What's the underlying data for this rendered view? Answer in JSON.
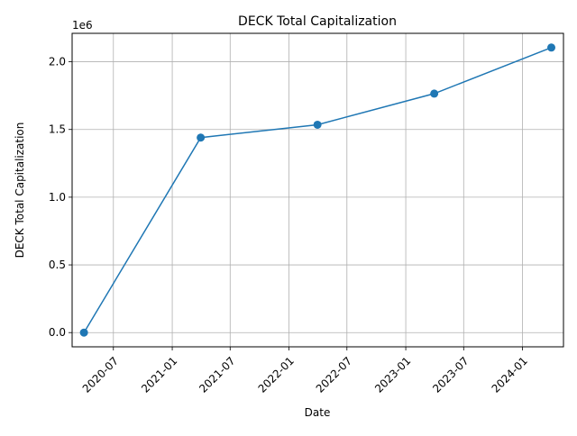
{
  "chart_data": {
    "type": "line",
    "title": "DECK Total Capitalization",
    "xlabel": "Date",
    "ylabel": "DECK Total Capitalization",
    "y_offset_label": "1e6",
    "x": [
      "2020-03-31",
      "2021-03-31",
      "2022-03-31",
      "2023-03-31",
      "2024-03-31"
    ],
    "series": [
      {
        "values": [
          0,
          1440000,
          1535000,
          1765000,
          2105000
        ]
      }
    ],
    "xlim": [
      "2020-02-23",
      "2024-05-08"
    ],
    "ylim": [
      -105000,
      2210000
    ],
    "x_ticks": [
      {
        "date": "2020-07-01",
        "label": "2020-07"
      },
      {
        "date": "2021-01-01",
        "label": "2021-01"
      },
      {
        "date": "2021-07-01",
        "label": "2021-07"
      },
      {
        "date": "2022-01-01",
        "label": "2022-01"
      },
      {
        "date": "2022-07-01",
        "label": "2022-07"
      },
      {
        "date": "2023-01-01",
        "label": "2023-01"
      },
      {
        "date": "2023-07-01",
        "label": "2023-07"
      },
      {
        "date": "2024-01-01",
        "label": "2024-01"
      }
    ],
    "y_ticks": [
      {
        "value": 0,
        "label": "0.0"
      },
      {
        "value": 500000,
        "label": "0.5"
      },
      {
        "value": 1000000,
        "label": "1.0"
      },
      {
        "value": 1500000,
        "label": "1.5"
      },
      {
        "value": 2000000,
        "label": "2.0"
      }
    ],
    "grid": true,
    "colors": {
      "line": "#1f77b4",
      "grid": "#b0b0b0",
      "axes": "#000000"
    }
  }
}
